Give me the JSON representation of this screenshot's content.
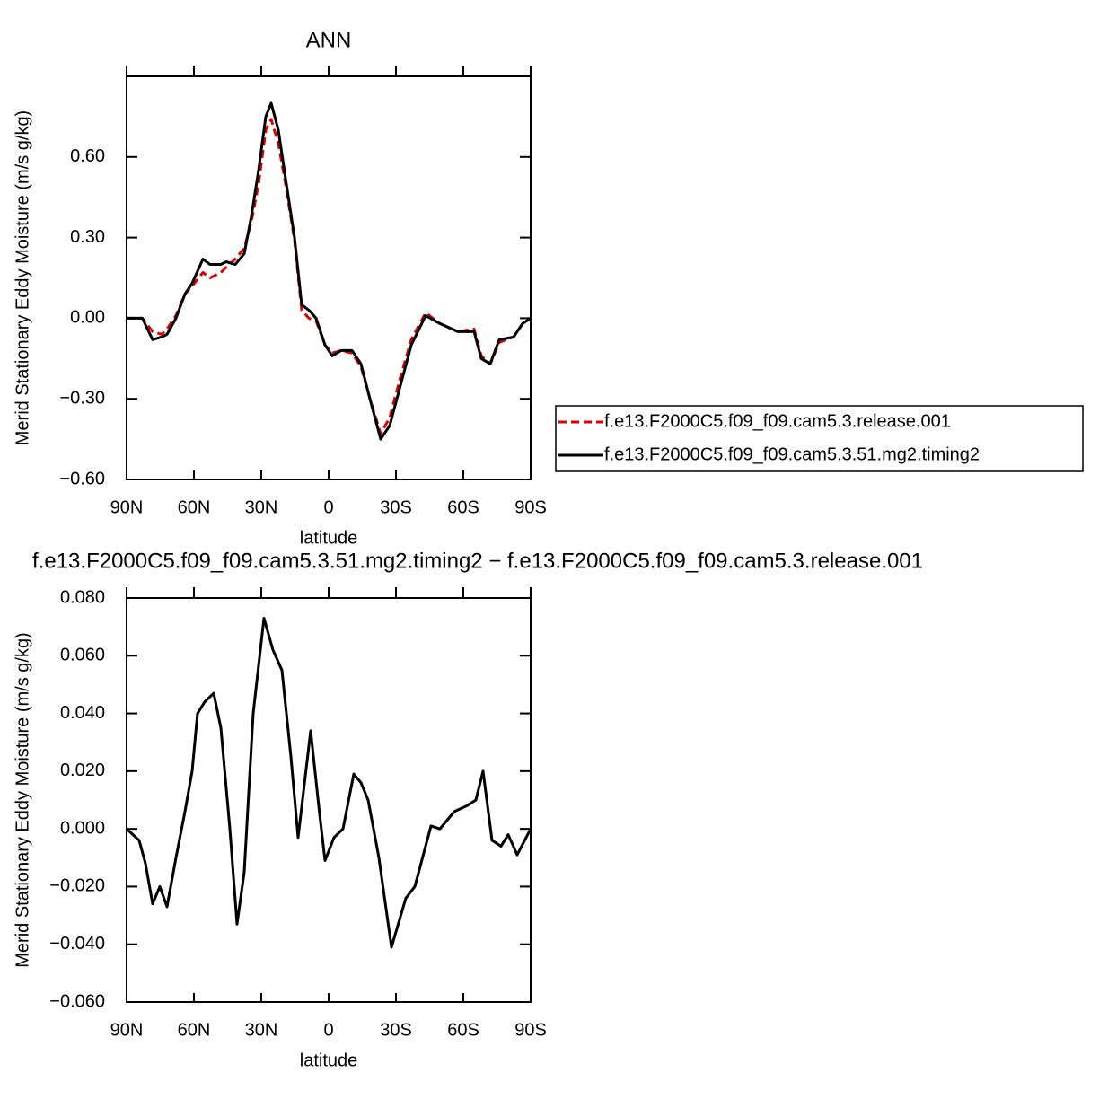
{
  "chart_data": [
    {
      "type": "line",
      "title": "ANN",
      "x_label": "latitude",
      "y_label": "Merid Stationary Eddy Moisture (m/s g/kg)",
      "x": [
        90,
        83,
        78.4,
        74.4,
        72,
        68,
        64,
        60.8,
        56,
        52.8,
        48,
        45.6,
        41.6,
        37.6,
        34.4,
        31.2,
        28,
        25.6,
        22.4,
        19.2,
        15.2,
        12,
        8.8,
        5.6,
        1.6,
        -1.6,
        -5.6,
        -10.4,
        -14.4,
        -18.4,
        -23.2,
        -27.2,
        -32,
        -36.8,
        -43.2,
        -49.6,
        -57.6,
        -64.8,
        -68,
        -72,
        -76,
        -82.4,
        -86.4,
        -90
      ],
      "series": [
        {
          "name": "f.e13.F2000C5.f09_f09.cam5.3.release.001",
          "color": "#e00000",
          "dashed": true,
          "values": [
            0,
            0,
            -0.05,
            -0.06,
            -0.04,
            0.01,
            0.09,
            0.12,
            0.17,
            0.15,
            0.17,
            0.19,
            0.22,
            0.26,
            0.36,
            0.5,
            0.7,
            0.74,
            0.65,
            0.5,
            0.29,
            0.03,
            0.0,
            -0.01,
            -0.1,
            -0.13,
            -0.12,
            -0.13,
            -0.18,
            -0.3,
            -0.43,
            -0.37,
            -0.22,
            -0.08,
            0.02,
            -0.02,
            -0.05,
            -0.04,
            -0.14,
            -0.17,
            -0.09,
            -0.07,
            -0.02,
            0
          ]
        },
        {
          "name": "f.e13.F2000C5.f09_f09.cam5.3.51.mg2.timing2",
          "color": "#000000",
          "dashed": false,
          "values": [
            0,
            0,
            -0.08,
            -0.07,
            -0.06,
            0,
            0.09,
            0.13,
            0.22,
            0.2,
            0.2,
            0.21,
            0.2,
            0.24,
            0.38,
            0.55,
            0.75,
            0.8,
            0.7,
            0.52,
            0.3,
            0.05,
            0.03,
            0,
            -0.1,
            -0.14,
            -0.12,
            -0.12,
            -0.17,
            -0.3,
            -0.45,
            -0.4,
            -0.25,
            -0.1,
            0.01,
            -0.02,
            -0.05,
            -0.05,
            -0.15,
            -0.17,
            -0.08,
            -0.07,
            -0.02,
            0
          ]
        }
      ],
      "xlim": [
        90,
        -90
      ],
      "xticks": [
        {
          "value": 90,
          "label": "90N"
        },
        {
          "value": 60,
          "label": "60N"
        },
        {
          "value": 30,
          "label": "30N"
        },
        0,
        {
          "value": -30,
          "label": "30S"
        },
        {
          "value": -60,
          "label": "60S"
        },
        {
          "value": -90,
          "label": "90S"
        }
      ],
      "ylim": [
        -0.6,
        0.9
      ],
      "yticks": [
        {
          "value": -0.6,
          "label": "−0.60"
        },
        {
          "value": -0.3,
          "label": "−0.30"
        },
        {
          "value": 0,
          "label": "0.00"
        },
        {
          "value": 0.3,
          "label": "0.30"
        },
        {
          "value": 0.6,
          "label": "0.60"
        }
      ],
      "legend": "right"
    },
    {
      "type": "line",
      "title": "f.e13.F2000C5.f09_f09.cam5.3.51.mg2.timing2 − f.e13.F2000C5.f09_f09.cam5.3.release.001",
      "x_label": "latitude",
      "y_label": "Merid Stationary Eddy Moisture (m/s g/kg)",
      "x": [
        90,
        84.4,
        81.6,
        78.4,
        75.2,
        72,
        68,
        64,
        60.8,
        58.4,
        55.2,
        51.2,
        48,
        44,
        40.8,
        37.6,
        33.6,
        28.8,
        24.8,
        20.8,
        16.8,
        13.6,
        8,
        4,
        1.6,
        -2.4,
        -6.4,
        -11.2,
        -14.4,
        -17.6,
        -22.4,
        -28,
        -34.4,
        -38.4,
        -45.6,
        -49.6,
        -56,
        -61.6,
        -65.6,
        -68.8,
        -72.8,
        -76.8,
        -80,
        -84,
        -90
      ],
      "series": [
        {
          "color": "#000000",
          "dashed": false,
          "values": [
            0,
            -0.004,
            -0.012,
            -0.026,
            -0.02,
            -0.027,
            -0.01,
            0.006,
            0.02,
            0.04,
            0.044,
            0.047,
            0.035,
            0.0,
            -0.033,
            -0.015,
            0.04,
            0.073,
            0.062,
            0.055,
            0.025,
            -0.003,
            0.034,
            0.005,
            -0.011,
            -0.003,
            0.0,
            0.019,
            0.016,
            0.01,
            -0.01,
            -0.041,
            -0.024,
            -0.02,
            0.001,
            0.0,
            0.006,
            0.008,
            0.01,
            0.02,
            -0.004,
            -0.006,
            -0.002,
            -0.009,
            0
          ]
        }
      ],
      "xlim": [
        90,
        -90
      ],
      "xticks": [
        {
          "value": 90,
          "label": "90N"
        },
        {
          "value": 60,
          "label": "60N"
        },
        {
          "value": 30,
          "label": "30N"
        },
        0,
        {
          "value": -30,
          "label": "30S"
        },
        {
          "value": -60,
          "label": "60S"
        },
        {
          "value": -90,
          "label": "90S"
        }
      ],
      "ylim": [
        -0.06,
        0.08
      ],
      "yticks": [
        {
          "value": -0.06,
          "label": "−0.060"
        },
        {
          "value": -0.04,
          "label": "−0.040"
        },
        {
          "value": -0.02,
          "label": "−0.020"
        },
        {
          "value": 0,
          "label": "0.000"
        },
        {
          "value": 0.02,
          "label": "0.020"
        },
        {
          "value": 0.04,
          "label": "0.040"
        },
        {
          "value": 0.06,
          "label": "0.060"
        },
        {
          "value": 0.08,
          "label": "0.080"
        }
      ]
    }
  ]
}
